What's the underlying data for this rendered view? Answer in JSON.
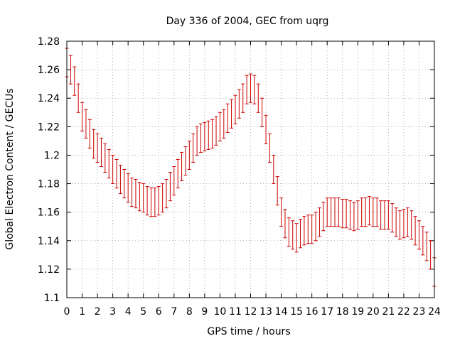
{
  "chart_data": {
    "type": "scatter",
    "title": "Day 336 of 2004, GEC from uqrg",
    "xlabel": "GPS time / hours",
    "ylabel": "Global Electron Content / GECUs",
    "xlim": [
      0,
      24
    ],
    "ylim": [
      1.1,
      1.28
    ],
    "xticks": [
      "0",
      "1",
      "2",
      "3",
      "4",
      "5",
      "6",
      "7",
      "8",
      "9",
      "10",
      "11",
      "12",
      "13",
      "14",
      "15",
      "16",
      "17",
      "18",
      "19",
      "20",
      "21",
      "22",
      "23",
      "24"
    ],
    "yticks": [
      "1.1",
      "1.12",
      "1.14",
      "1.16",
      "1.18",
      "1.2",
      "1.22",
      "1.24",
      "1.26",
      "1.28"
    ],
    "grid": true,
    "error_bar_halfwidth": 0.01,
    "series": [
      {
        "color": "#cc0000",
        "x": [
          0.0,
          0.25,
          0.5,
          0.75,
          1.0,
          1.25,
          1.5,
          1.75,
          2.0,
          2.25,
          2.5,
          2.75,
          3.0,
          3.25,
          3.5,
          3.75,
          4.0,
          4.25,
          4.5,
          4.75,
          5.0,
          5.25,
          5.5,
          5.75,
          6.0,
          6.25,
          6.5,
          6.75,
          7.0,
          7.25,
          7.5,
          7.75,
          8.0,
          8.25,
          8.5,
          8.75,
          9.0,
          9.25,
          9.5,
          9.75,
          10.0,
          10.25,
          10.5,
          10.75,
          11.0,
          11.25,
          11.5,
          11.75,
          12.0,
          12.25,
          12.5,
          12.75,
          13.0,
          13.25,
          13.5,
          13.75,
          14.0,
          14.25,
          14.5,
          14.75,
          15.0,
          15.25,
          15.5,
          15.75,
          16.0,
          16.25,
          16.5,
          16.75,
          17.0,
          17.25,
          17.5,
          17.75,
          18.0,
          18.25,
          18.5,
          18.75,
          19.0,
          19.25,
          19.5,
          19.75,
          20.0,
          20.25,
          20.5,
          20.75,
          21.0,
          21.25,
          21.5,
          21.75,
          22.0,
          22.25,
          22.5,
          22.75,
          23.0,
          23.25,
          23.5,
          23.75,
          24.0
        ],
        "y": [
          1.265,
          1.26,
          1.252,
          1.24,
          1.227,
          1.222,
          1.215,
          1.208,
          1.205,
          1.202,
          1.198,
          1.194,
          1.19,
          1.187,
          1.183,
          1.18,
          1.177,
          1.174,
          1.173,
          1.171,
          1.17,
          1.168,
          1.167,
          1.167,
          1.168,
          1.17,
          1.173,
          1.178,
          1.182,
          1.187,
          1.192,
          1.196,
          1.2,
          1.205,
          1.21,
          1.212,
          1.213,
          1.214,
          1.215,
          1.217,
          1.22,
          1.222,
          1.226,
          1.229,
          1.232,
          1.236,
          1.24,
          1.246,
          1.247,
          1.246,
          1.24,
          1.23,
          1.218,
          1.205,
          1.19,
          1.175,
          1.16,
          1.152,
          1.146,
          1.144,
          1.142,
          1.145,
          1.147,
          1.148,
          1.148,
          1.15,
          1.153,
          1.157,
          1.16,
          1.16,
          1.16,
          1.16,
          1.159,
          1.159,
          1.158,
          1.157,
          1.158,
          1.16,
          1.16,
          1.161,
          1.16,
          1.16,
          1.158,
          1.158,
          1.158,
          1.156,
          1.153,
          1.151,
          1.152,
          1.153,
          1.151,
          1.147,
          1.144,
          1.14,
          1.136,
          1.13,
          1.118
        ]
      }
    ]
  }
}
